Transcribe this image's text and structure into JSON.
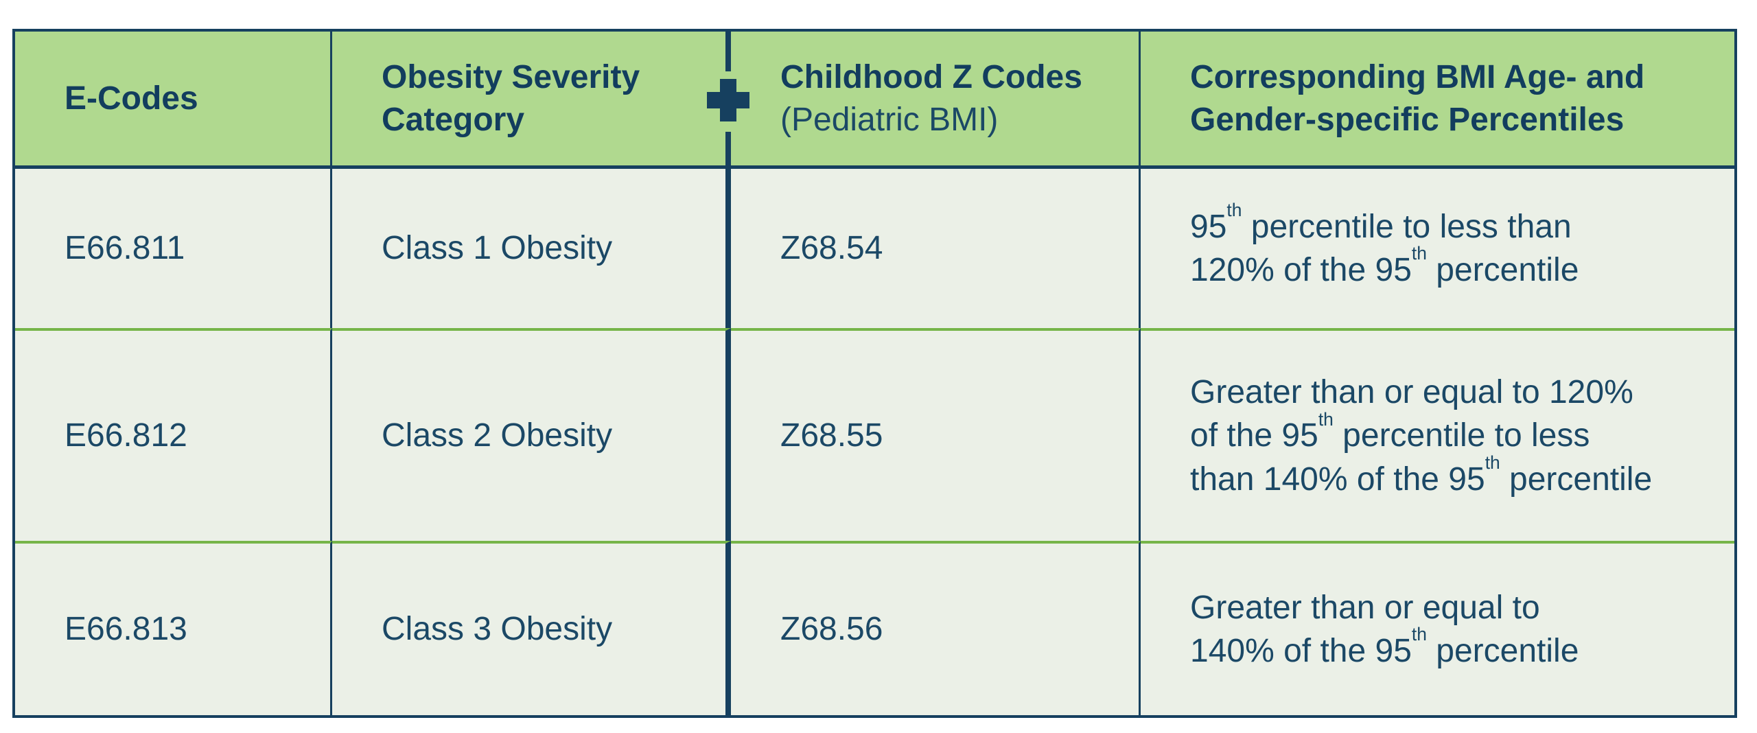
{
  "table": {
    "title_semantic": "pediatric-obesity-coding-table",
    "columns": [
      {
        "label": "E-Codes"
      },
      {
        "label": "Obesity Severity\nCategory"
      },
      {
        "label": "Childhood Z Codes",
        "sublabel": "(Pediatric BMI)"
      },
      {
        "label": "Corresponding BMI Age- and\nGender-specific Percentiles"
      }
    ],
    "plus_icon_glyph": "+",
    "rows": [
      {
        "e_code": "E66.811",
        "severity": "Class 1 Obesity",
        "z_code": "Z68.54",
        "percentile": "95^{th} percentile to less than\n120% of the 95^{th} percentile"
      },
      {
        "e_code": "E66.812",
        "severity": "Class 2 Obesity",
        "z_code": "Z68.55",
        "percentile": "Greater than or equal to 120%\nof the 95^{th} percentile to less\nthan 140% of the 95^{th} percentile"
      },
      {
        "e_code": "E66.813",
        "severity": "Class 3 Obesity",
        "z_code": "Z68.56",
        "percentile": "Greater than or equal to\n140% of the 95^{th} percentile"
      }
    ],
    "colors": {
      "header_green": "#b0d98f",
      "body_background": "#ebf0e7",
      "navy": "#16405f",
      "row_divider_green": "#76b549",
      "page_background": "#ffffff"
    }
  }
}
